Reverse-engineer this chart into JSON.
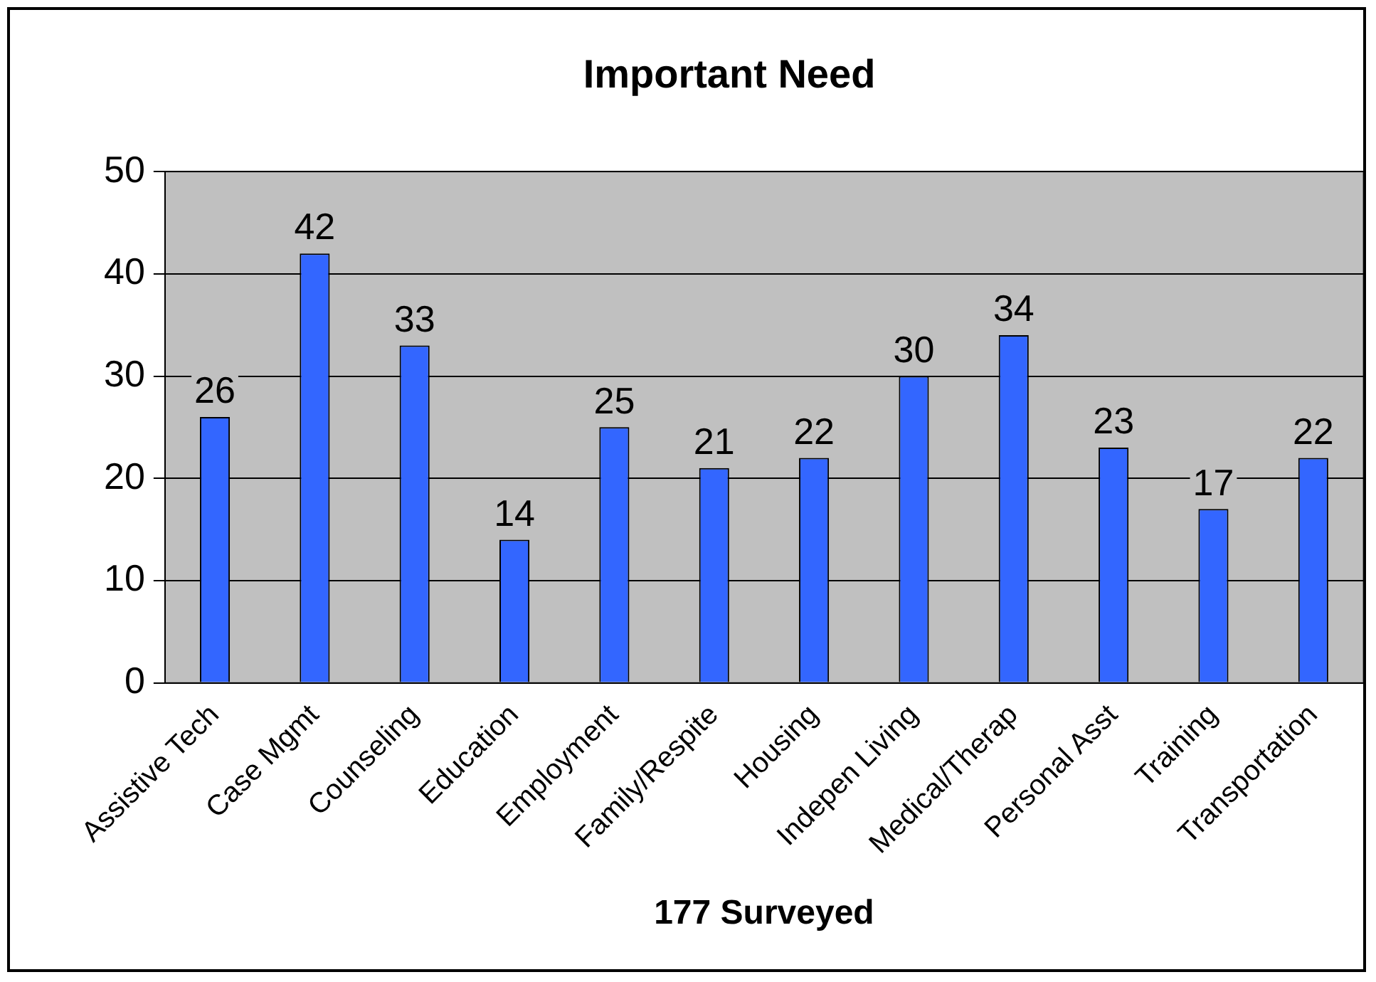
{
  "chart_data": {
    "type": "bar",
    "title": "Important Need",
    "xlabel": "177 Surveyed",
    "categories": [
      "Assistive Tech",
      "Case Mgmt",
      "Counseling",
      "Education",
      "Employment",
      "Family/Respite",
      "Housing",
      "Indepen Living",
      "Medical/Therap",
      "Personal Asst",
      "Training",
      "Transportation"
    ],
    "values": [
      26,
      42,
      33,
      14,
      25,
      21,
      22,
      30,
      34,
      23,
      17,
      22
    ],
    "color": "#3366ff",
    "ylim": [
      0,
      50
    ],
    "yticks": [
      0,
      10,
      20,
      30,
      40,
      50
    ],
    "grid": "y",
    "legend": false,
    "data_labels": true
  }
}
